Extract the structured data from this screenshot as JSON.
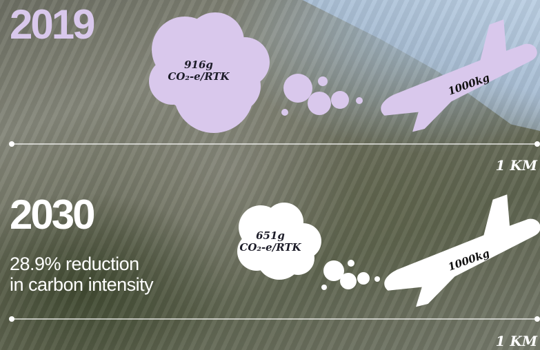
{
  "scenario_2019": {
    "year": "2019",
    "intensity_value": "916g",
    "intensity_unit": "CO₂-e/RTK",
    "cargo_weight": "1000kg",
    "distance": "1 KM",
    "color": "#d9c8ec"
  },
  "scenario_2030": {
    "year": "2030",
    "reduction_line1": "28.9% reduction",
    "reduction_line2": "in carbon intensity",
    "intensity_value": "651g",
    "intensity_unit": "CO₂-e/RTK",
    "cargo_weight": "1000kg",
    "distance": "1 KM",
    "color": "#ffffff"
  },
  "icons": {
    "emission_cloud": "cloud-icon",
    "aircraft": "airplane-icon"
  }
}
